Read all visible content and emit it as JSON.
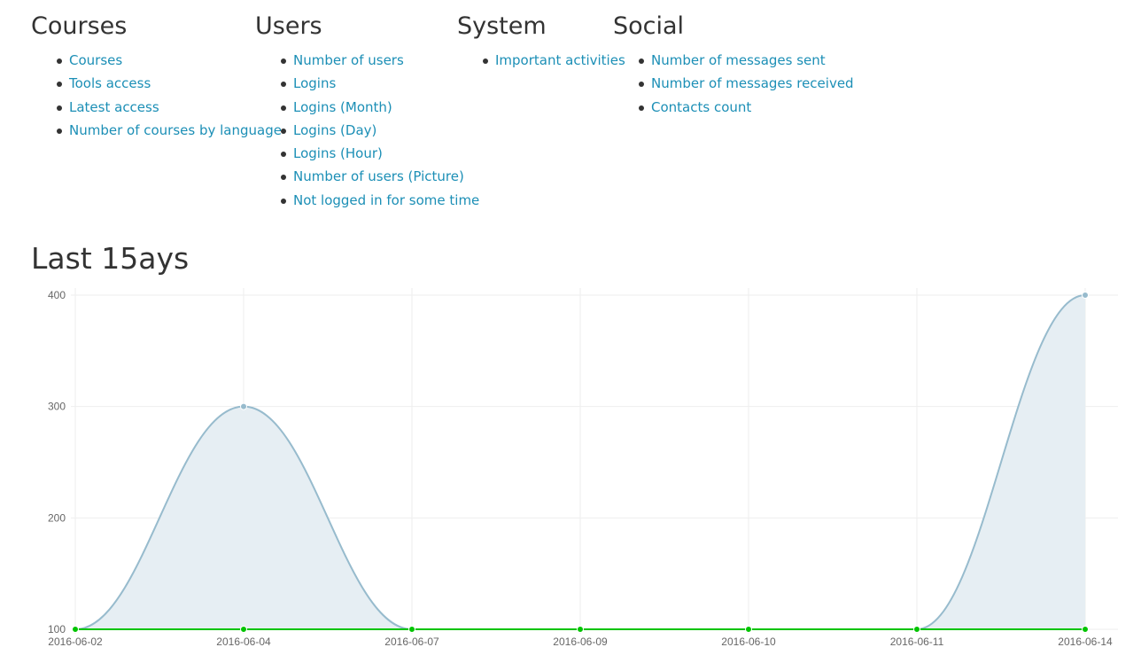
{
  "menu": {
    "courses": {
      "title": "Courses",
      "items": [
        "Courses",
        "Tools access",
        "Latest access",
        "Number of courses by language"
      ]
    },
    "users": {
      "title": "Users",
      "items": [
        "Number of users",
        "Logins",
        "Logins (Month)",
        "Logins (Day)",
        "Logins (Hour)",
        "Number of users (Picture)",
        "Not logged in for some time"
      ]
    },
    "system": {
      "title": "System",
      "items": [
        "Important activities"
      ]
    },
    "social": {
      "title": "Social",
      "items": [
        "Number of messages sent",
        "Number of messages received",
        "Contacts count"
      ]
    }
  },
  "chart_title": "Last 15ays",
  "colors": {
    "link": "#1c8fb6",
    "series_1": "#97bbcd",
    "series_1_fill": "#e6eef3",
    "series_2": "#00c400",
    "grid": "#eeeeee"
  },
  "chart_data": {
    "type": "line",
    "title": "",
    "xlabel": "",
    "ylabel": "",
    "categories": [
      "2016-06-02",
      "2016-06-04",
      "2016-06-07",
      "2016-06-09",
      "2016-06-10",
      "2016-06-11",
      "2016-06-14"
    ],
    "y_ticks": [
      "100",
      "200",
      "300",
      "400"
    ],
    "ylim": [
      100,
      400
    ],
    "grid": true,
    "series": [
      {
        "values": [
          100,
          300,
          100,
          100,
          100,
          100,
          400
        ],
        "color": "#97bbcd",
        "fill": "#e6eef3",
        "area": true
      },
      {
        "values": [
          100,
          100,
          100,
          100,
          100,
          100,
          100
        ],
        "color": "#00c400",
        "fill": "none",
        "area": false
      }
    ]
  }
}
